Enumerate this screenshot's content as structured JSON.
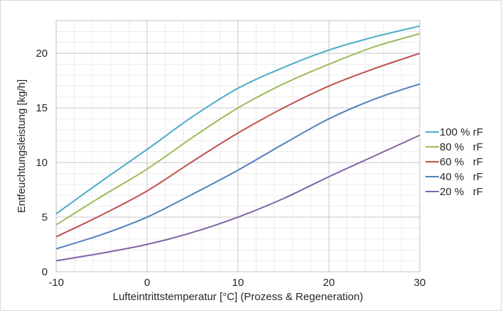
{
  "chart_data": {
    "type": "line",
    "title": "",
    "xlabel": "Lufteintrittstemperatur [°C] (Prozess & Regeneration)",
    "ylabel": "Entfeuchtungsleistung [kg/h]",
    "xlim": [
      -10,
      30
    ],
    "ylim": [
      0,
      23
    ],
    "xticks": [
      -10,
      0,
      10,
      20,
      30
    ],
    "yticks": [
      0,
      5,
      10,
      15,
      20
    ],
    "x_minor_step": 2,
    "y_minor_step": 1,
    "grid": true,
    "legend": "right",
    "x": [
      -10,
      -5,
      0,
      5,
      10,
      15,
      20,
      25,
      30
    ],
    "series": [
      {
        "name": "100 % rF",
        "color": "#4bacc6",
        "values": [
          5.3,
          8.3,
          11.2,
          14.2,
          16.8,
          18.7,
          20.3,
          21.5,
          22.5
        ]
      },
      {
        "name": "80 %   rF",
        "color": "#9bbb59",
        "values": [
          4.3,
          6.9,
          9.4,
          12.3,
          15.0,
          17.2,
          19.0,
          20.6,
          21.8
        ]
      },
      {
        "name": "60 %   rF",
        "color": "#c0504d",
        "values": [
          3.2,
          5.2,
          7.4,
          10.1,
          12.7,
          15.0,
          17.0,
          18.6,
          20.0
        ]
      },
      {
        "name": "40 %   rF",
        "color": "#4f81bd",
        "values": [
          2.1,
          3.4,
          5.0,
          7.1,
          9.3,
          11.7,
          14.0,
          15.8,
          17.2
        ]
      },
      {
        "name": "20 %   rF",
        "color": "#8064a2",
        "values": [
          1.0,
          1.7,
          2.5,
          3.6,
          5.0,
          6.7,
          8.7,
          10.6,
          12.5
        ]
      }
    ]
  }
}
